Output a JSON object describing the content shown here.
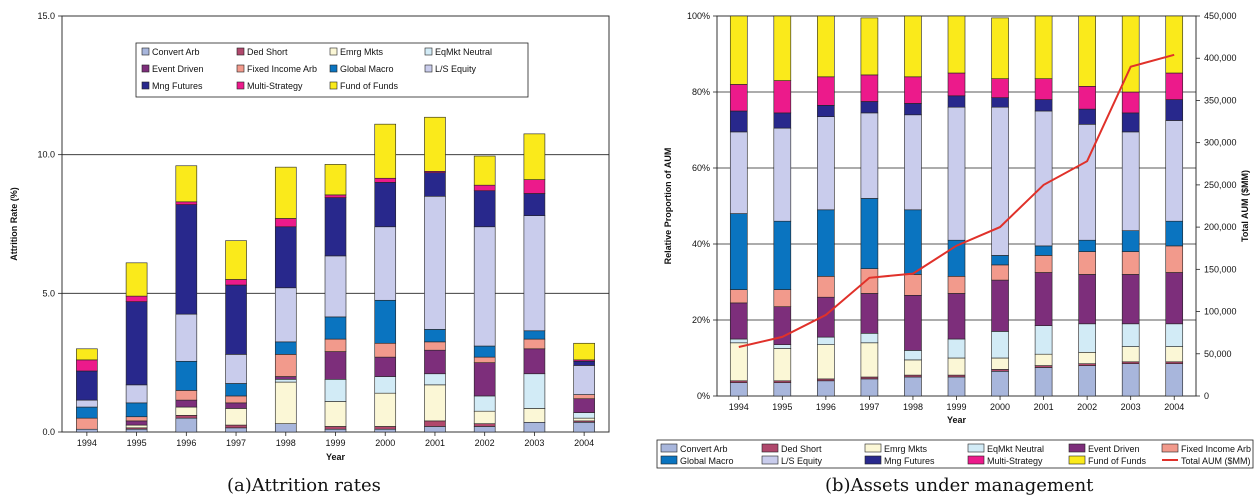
{
  "captions": {
    "a": "(a)Attrition rates",
    "b": "(b)Assets under management"
  },
  "categories": [
    {
      "name": "Convert Arb",
      "color": "#A8B6DC"
    },
    {
      "name": "Ded Short",
      "color": "#B0486C"
    },
    {
      "name": "Emrg Mkts",
      "color": "#FBF7D6"
    },
    {
      "name": "EqMkt Neutral",
      "color": "#D2EBF6"
    },
    {
      "name": "Event Driven",
      "color": "#7D2E7B"
    },
    {
      "name": "Fixed Income Arb",
      "color": "#F29A8C"
    },
    {
      "name": "Global Macro",
      "color": "#0A74C0"
    },
    {
      "name": "L/S Equity",
      "color": "#C9CCEC"
    },
    {
      "name": "Mng Futures",
      "color": "#28288C"
    },
    {
      "name": "Multi-Strategy",
      "color": "#EC1A8B"
    },
    {
      "name": "Fund of Funds",
      "color": "#FAEA1B"
    }
  ],
  "line_color": "#E0312A",
  "chart_data": [
    {
      "type": "bar",
      "stacked": true,
      "title": "",
      "xlabel": "Year",
      "ylabel": "Attrition Rate (%)",
      "ylim": [
        0,
        15
      ],
      "yticks": [
        "0.0",
        "5.0",
        "10.0",
        "15.0"
      ],
      "grid": true,
      "legend_position": "top",
      "categories": [
        "1994",
        "1995",
        "1996",
        "1997",
        "1998",
        "1999",
        "2000",
        "2001",
        "2002",
        "2003",
        "2004"
      ],
      "series": [
        {
          "name": "Convert Arb",
          "values": [
            0.1,
            0.1,
            0.5,
            0.15,
            0.3,
            0.1,
            0.1,
            0.2,
            0.2,
            0.35,
            0.35
          ]
        },
        {
          "name": "Ded Short",
          "values": [
            0.0,
            0.05,
            0.1,
            0.1,
            0.0,
            0.1,
            0.1,
            0.2,
            0.1,
            0.0,
            0.05
          ]
        },
        {
          "name": "Emrg Mkts",
          "values": [
            0.0,
            0.1,
            0.3,
            0.6,
            1.5,
            0.9,
            1.2,
            1.3,
            0.45,
            0.5,
            0.1
          ]
        },
        {
          "name": "EqMkt Neutral",
          "values": [
            0.0,
            0.0,
            0.0,
            0.0,
            0.1,
            0.8,
            0.6,
            0.4,
            0.55,
            1.25,
            0.2
          ]
        },
        {
          "name": "Event Driven",
          "values": [
            0.0,
            0.15,
            0.25,
            0.2,
            0.1,
            1.0,
            0.7,
            0.85,
            1.2,
            0.9,
            0.5
          ]
        },
        {
          "name": "Fixed Income Arb",
          "values": [
            0.4,
            0.15,
            0.35,
            0.25,
            0.8,
            0.45,
            0.5,
            0.3,
            0.2,
            0.35,
            0.15
          ]
        },
        {
          "name": "Global Macro",
          "values": [
            0.4,
            0.5,
            1.05,
            0.45,
            0.45,
            0.8,
            1.55,
            0.45,
            0.4,
            0.3,
            0.0
          ]
        },
        {
          "name": "L/S Equity",
          "values": [
            0.25,
            0.65,
            1.7,
            1.05,
            1.95,
            2.2,
            2.65,
            4.8,
            4.3,
            4.15,
            1.05
          ]
        },
        {
          "name": "Mng Futures",
          "values": [
            1.05,
            3.0,
            3.95,
            2.5,
            2.2,
            2.1,
            1.6,
            0.85,
            1.3,
            0.8,
            0.15
          ]
        },
        {
          "name": "Multi-Strategy",
          "values": [
            0.4,
            0.2,
            0.1,
            0.2,
            0.3,
            0.1,
            0.15,
            0.05,
            0.2,
            0.5,
            0.05
          ]
        },
        {
          "name": "Fund of Funds",
          "values": [
            0.4,
            1.2,
            1.3,
            1.4,
            1.85,
            1.1,
            1.95,
            1.95,
            1.05,
            1.65,
            0.6
          ]
        }
      ]
    },
    {
      "type": "bar",
      "stacked": true,
      "title": "",
      "xlabel": "Year",
      "ylabel": "Relative Proportion of AUM",
      "y2label": "Total AUM ($MM)",
      "ylim": [
        0,
        100
      ],
      "yticks": [
        "0%",
        "20%",
        "40%",
        "60%",
        "80%",
        "100%"
      ],
      "y2lim": [
        0,
        450000
      ],
      "y2ticks": [
        "0",
        "50,000",
        "100,000",
        "150,000",
        "200,000",
        "250,000",
        "300,000",
        "350,000",
        "400,000",
        "450,000"
      ],
      "grid": true,
      "legend_position": "bottom",
      "categories": [
        "1994",
        "1995",
        "1996",
        "1997",
        "1998",
        "1999",
        "2000",
        "2001",
        "2002",
        "2003",
        "2004"
      ],
      "series": [
        {
          "name": "Convert Arb",
          "values": [
            3.5,
            3.5,
            4,
            4.5,
            5,
            5,
            6.5,
            7.5,
            8,
            8.5,
            8.5
          ]
        },
        {
          "name": "Ded Short",
          "values": [
            0.5,
            0.5,
            0.5,
            0.5,
            0.5,
            0.5,
            0.5,
            0.5,
            0.5,
            0.5,
            0.5
          ]
        },
        {
          "name": "Emrg Mkts",
          "values": [
            10,
            8.5,
            9,
            9,
            4,
            4.5,
            3,
            3,
            3,
            4,
            4
          ]
        },
        {
          "name": "EqMkt Neutral",
          "values": [
            1,
            1,
            2,
            2.5,
            2.5,
            5,
            7,
            7.5,
            7.5,
            6,
            6
          ]
        },
        {
          "name": "Event Driven",
          "values": [
            9.5,
            10,
            10.5,
            10.5,
            14.5,
            12,
            13.5,
            14,
            13,
            13,
            13.5
          ]
        },
        {
          "name": "Fixed Income Arb",
          "values": [
            3.5,
            4.5,
            5.5,
            6.5,
            5.5,
            4.5,
            4,
            4.5,
            6,
            6,
            7
          ]
        },
        {
          "name": "Global Macro",
          "values": [
            20,
            18,
            17.5,
            18.5,
            17,
            9.5,
            2.5,
            2.5,
            3,
            5.5,
            6.5
          ]
        },
        {
          "name": "L/S Equity",
          "values": [
            21.5,
            24.5,
            24.5,
            22.5,
            25,
            35,
            39,
            35.5,
            30.5,
            26,
            26.5
          ]
        },
        {
          "name": "Mng Futures",
          "values": [
            5.5,
            4,
            3,
            3,
            3,
            3,
            2.5,
            3,
            4,
            5,
            5.5
          ]
        },
        {
          "name": "Multi-Strategy",
          "values": [
            7,
            8.5,
            7.5,
            7,
            7,
            6,
            5,
            5.5,
            6,
            5.5,
            7
          ]
        },
        {
          "name": "Fund of Funds",
          "values": [
            18,
            17,
            16,
            15,
            16,
            15,
            16,
            16.5,
            18.5,
            20,
            15
          ]
        }
      ],
      "line": {
        "name": "Total AUM ($MM)",
        "axis": "right",
        "values": [
          58000,
          70000,
          96000,
          140000,
          145000,
          178000,
          200000,
          250000,
          278000,
          390000,
          404000
        ]
      }
    }
  ]
}
